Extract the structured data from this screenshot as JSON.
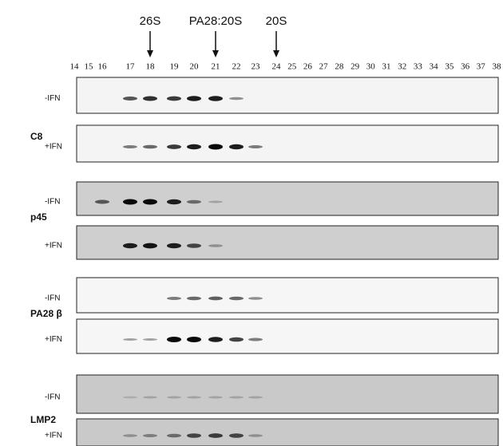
{
  "markers": [
    {
      "label": "26S"
    },
    {
      "label": "PA28:20S"
    },
    {
      "label": "20S"
    }
  ],
  "fractions": [
    "14",
    "15",
    "16",
    "17",
    "18",
    "19",
    "20",
    "21",
    "22",
    "23",
    "24",
    "25",
    "26",
    "27",
    "28",
    "29",
    "30",
    "31",
    "32",
    "33",
    "34",
    "35",
    "36",
    "37",
    "38"
  ],
  "groups": [
    {
      "label": "C8",
      "rows": [
        {
          "label": "-IFN"
        },
        {
          "label": "+IFN"
        }
      ]
    },
    {
      "label": "p45",
      "rows": [
        {
          "label": "-IFN"
        },
        {
          "label": "+IFN"
        }
      ]
    },
    {
      "label": "PA28 β",
      "rows": [
        {
          "label": "-IFN"
        },
        {
          "label": "+IFN"
        }
      ]
    },
    {
      "label": "LMP2",
      "rows": [
        {
          "label": "-IFN"
        },
        {
          "label": "+IFN"
        }
      ]
    }
  ]
}
